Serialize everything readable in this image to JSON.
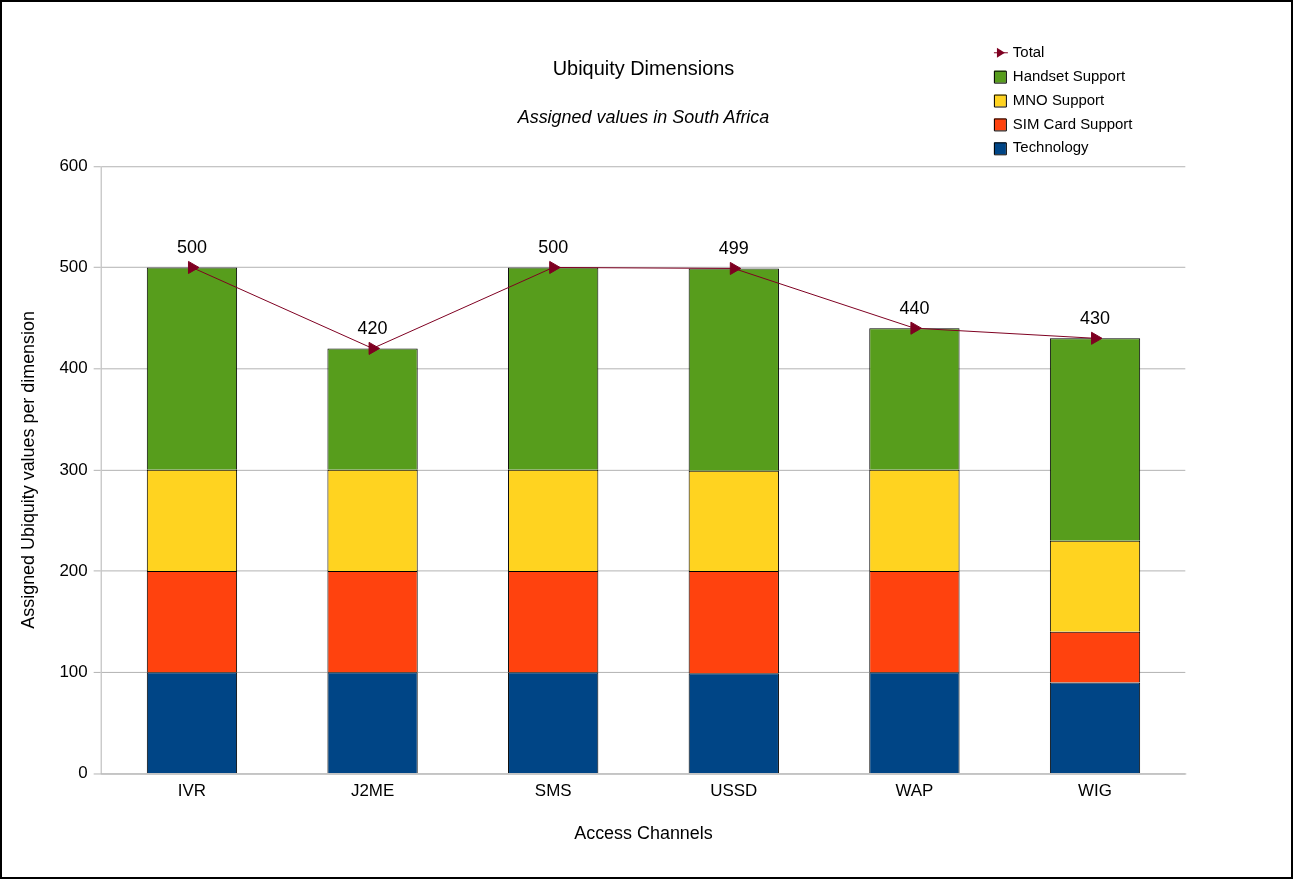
{
  "chart_data": {
    "type": "bar",
    "title": "Ubiquity Dimensions",
    "subtitle": "Assigned values in South Africa",
    "xlabel": "Access Channels",
    "ylabel": "Assigned Ubiquity values per dimension",
    "categories": [
      "IVR",
      "J2ME",
      "SMS",
      "USSD",
      "WAP",
      "WIG"
    ],
    "stacked": true,
    "series": [
      {
        "name": "Technology",
        "color": "#004586",
        "values": [
          100,
          100,
          100,
          99,
          100,
          90
        ]
      },
      {
        "name": "SIM Card Support",
        "color": "#ff420e",
        "values": [
          100,
          100,
          100,
          101,
          100,
          50
        ]
      },
      {
        "name": "MNO Support",
        "color": "#ffd320",
        "values": [
          100,
          100,
          100,
          99,
          100,
          90
        ]
      },
      {
        "name": "Handset Support",
        "color": "#579d1c",
        "values": [
          200,
          120,
          200,
          200,
          140,
          200
        ]
      },
      {
        "name": "Total",
        "type": "line",
        "color": "#7e0021",
        "marker": "triangle",
        "values": [
          500,
          420,
          500,
          499,
          440,
          430
        ],
        "value_labels": [
          "500",
          "420",
          "500",
          "499",
          "440",
          "430"
        ]
      }
    ],
    "ylim": [
      0,
      600
    ],
    "yticks": [
      0,
      100,
      200,
      300,
      400,
      500,
      600
    ],
    "grid": "y",
    "legend": "top right"
  }
}
